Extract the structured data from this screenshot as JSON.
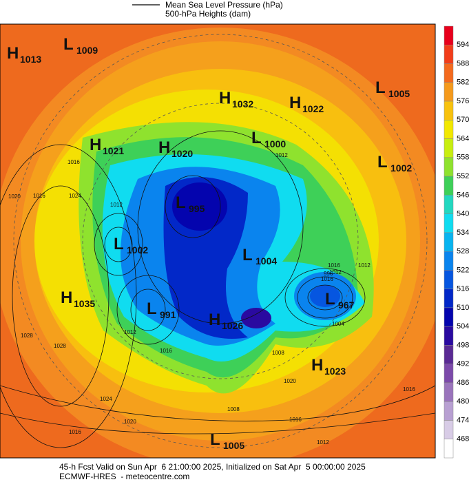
{
  "legend": {
    "line_label": "Mean Sea Level Pressure (hPa)",
    "fill_label": "500-hPa Heights (dam)"
  },
  "centers": [
    {
      "kind": "H",
      "value": 1013
    },
    {
      "kind": "L",
      "value": 1009
    },
    {
      "kind": "L",
      "value": 1005
    },
    {
      "kind": "H",
      "value": 1032
    },
    {
      "kind": "H",
      "value": 1022
    },
    {
      "kind": "H",
      "value": 1021
    },
    {
      "kind": "H",
      "value": 1020
    },
    {
      "kind": "L",
      "value": 1000
    },
    {
      "kind": "L",
      "value": 1002
    },
    {
      "kind": "L",
      "value": 995
    },
    {
      "kind": "L",
      "value": 1002
    },
    {
      "kind": "L",
      "value": 1004
    },
    {
      "kind": "H",
      "value": 1035
    },
    {
      "kind": "L",
      "value": 967
    },
    {
      "kind": "L",
      "value": 991
    },
    {
      "kind": "H",
      "value": 1026
    },
    {
      "kind": "H",
      "value": 1023
    },
    {
      "kind": "L",
      "value": 1005
    }
  ],
  "contour_labels": [
    1016,
    1020,
    1024,
    1028,
    1012,
    1016,
    1012,
    1016,
    1012,
    1008,
    1004,
    996,
    1016,
    1012,
    1016,
    1020,
    1024,
    1016,
    1028,
    1016,
    1012,
    1008,
    1020,
    1016,
    1012
  ],
  "colorbar": {
    "ticks": [
      594,
      588,
      582,
      576,
      570,
      564,
      558,
      552,
      546,
      540,
      534,
      528,
      522,
      516,
      510,
      504,
      498,
      492,
      486,
      480,
      474,
      468
    ],
    "colors": [
      "#e8001c",
      "#f23d1a",
      "#f46a1e",
      "#f59a1c",
      "#f8c20e",
      "#f2e800",
      "#c8ee10",
      "#8fe22e",
      "#3ed058",
      "#22d8c0",
      "#10dcf0",
      "#08b4f0",
      "#0a84ee",
      "#0656e0",
      "#0228c8",
      "#0404ae",
      "#2a0aa0",
      "#5a2a94",
      "#7c4aaa",
      "#9a74bc",
      "#b8a0d2",
      "#d8cce6",
      "#ffffff"
    ]
  },
  "footer": {
    "line1": "45-h Fcst Valid on Sun Apr  6 21:00:00 2025, Initialized on Sat Apr  5 00:00:00 2025",
    "line2": "ECMWF-HRES  - meteocentre.com"
  }
}
